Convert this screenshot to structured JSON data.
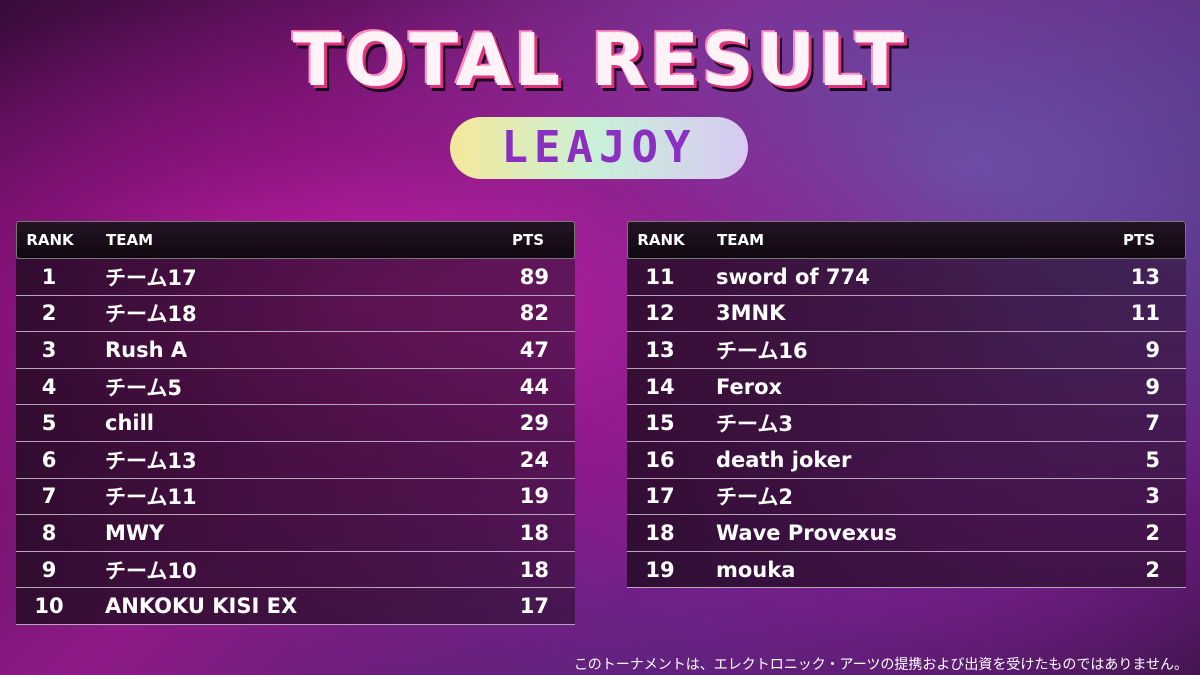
{
  "header": {
    "title": "TOTAL RESULT",
    "logo": "LEAJOY"
  },
  "tables": [
    {
      "columns": [
        "RANK",
        "TEAM",
        "PTS"
      ],
      "rows": [
        [
          1,
          "チーム17",
          89
        ],
        [
          2,
          "チーム18",
          82
        ],
        [
          3,
          "Rush A",
          47
        ],
        [
          4,
          "チーム5",
          44
        ],
        [
          5,
          "chill",
          29
        ],
        [
          6,
          "チーム13",
          24
        ],
        [
          7,
          "チーム11",
          19
        ],
        [
          8,
          "MWY",
          18
        ],
        [
          9,
          "チーム10",
          18
        ],
        [
          10,
          "ANKOKU KISI EX",
          17
        ]
      ]
    },
    {
      "columns": [
        "RANK",
        "TEAM",
        "PTS"
      ],
      "rows": [
        [
          11,
          "sword of 774",
          13
        ],
        [
          12,
          "3MNK",
          11
        ],
        [
          13,
          "チーム16",
          9
        ],
        [
          14,
          "Ferox",
          9
        ],
        [
          15,
          "チーム3",
          7
        ],
        [
          16,
          "death joker",
          5
        ],
        [
          17,
          "チーム2",
          3
        ],
        [
          18,
          "Wave Provexus",
          2
        ],
        [
          19,
          "mouka",
          2
        ]
      ]
    }
  ],
  "footer": {
    "note": "このトーナメントは、エレクトロニック・アーツの提携および出資を受けたものではありません。"
  }
}
